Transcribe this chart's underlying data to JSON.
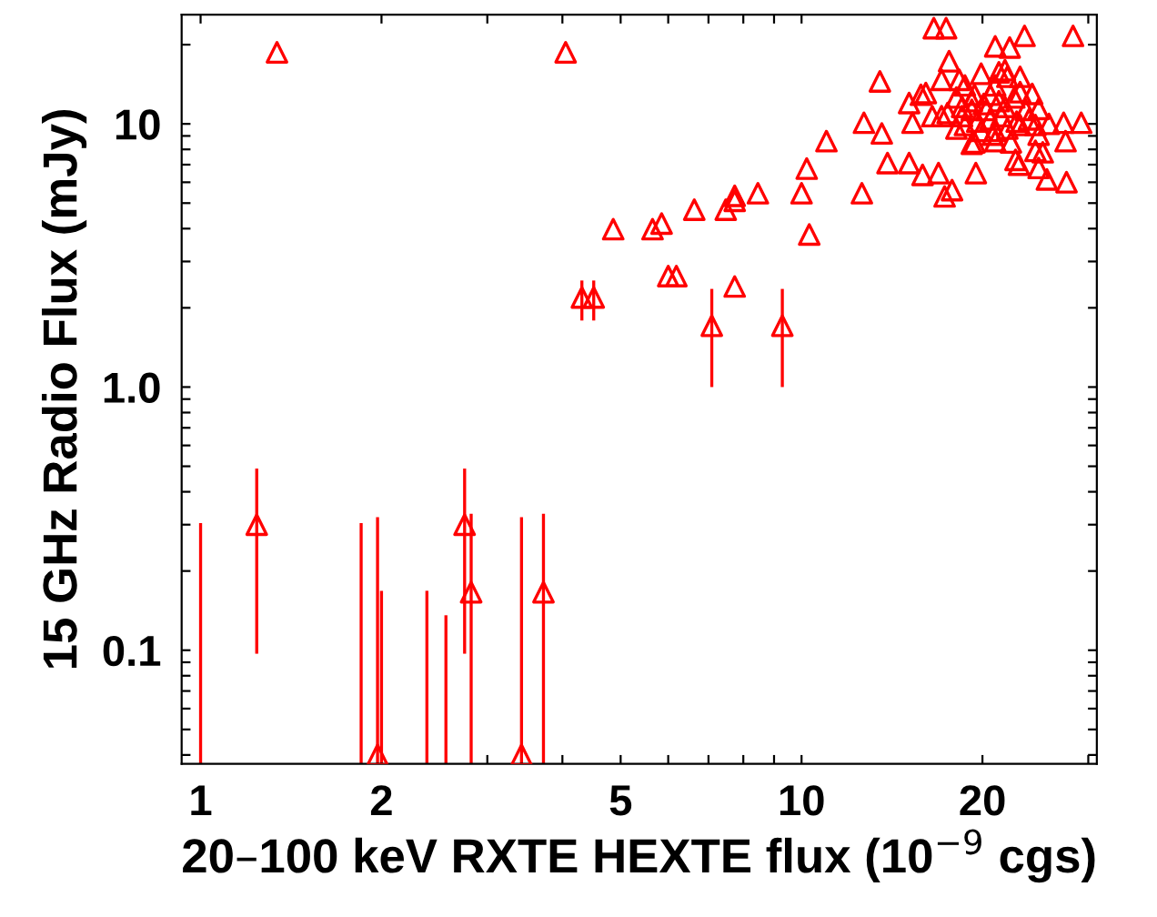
{
  "chart_data": {
    "type": "scatter",
    "xlabel": "20–100 keV RXTE HEXTE flux (10$^{−9}$ cgs)",
    "ylabel": "15 GHz Radio Flux (mJy)",
    "log": "xy",
    "grid": false,
    "marker": "triangle",
    "xlim": [
      0.93,
      31
    ],
    "ylim": [
      0.037,
      26
    ],
    "xticks": [
      1,
      2,
      {
        "value": 3,
        "label": null
      },
      {
        "value": 4,
        "label": null
      },
      5,
      {
        "value": 6,
        "label": null
      },
      {
        "value": 7,
        "label": null
      },
      {
        "value": 8,
        "label": null
      },
      {
        "value": 9,
        "label": null
      },
      10,
      20,
      {
        "value": 30,
        "label": null
      }
    ],
    "yticks": [
      {
        "value": 0.04,
        "label": null
      },
      {
        "value": 0.05,
        "label": null
      },
      {
        "value": 0.06,
        "label": null
      },
      {
        "value": 0.07,
        "label": null
      },
      {
        "value": 0.08,
        "label": null
      },
      {
        "value": 0.09,
        "label": null
      },
      0.1,
      {
        "value": 0.2,
        "label": null
      },
      {
        "value": 0.3,
        "label": null
      },
      {
        "value": 0.4,
        "label": null
      },
      {
        "value": 0.5,
        "label": null
      },
      {
        "value": 0.6,
        "label": null
      },
      {
        "value": 0.7,
        "label": null
      },
      {
        "value": 0.8,
        "label": null
      },
      {
        "value": 0.9,
        "label": null
      },
      {
        "value": 1,
        "label": "1.0"
      },
      {
        "value": 2,
        "label": null
      },
      {
        "value": 3,
        "label": null
      },
      {
        "value": 4,
        "label": null
      },
      {
        "value": 5,
        "label": null
      },
      {
        "value": 6,
        "label": null
      },
      {
        "value": 7,
        "label": null
      },
      {
        "value": 8,
        "label": null
      },
      {
        "value": 9,
        "label": null
      },
      10,
      {
        "value": 20,
        "label": null
      }
    ],
    "series": [
      {
        "color": "#ff0000",
        "x": [
          1.97,
          1.24,
          2.75,
          2.82,
          3.42,
          3.72,
          1.34,
          4.05,
          4.31,
          4.51,
          4.86,
          5.65,
          5.85,
          6.0,
          6.19,
          6.63,
          7.09,
          7.48,
          7.74,
          7.74,
          7.74,
          8.46,
          9.29,
          10,
          10.2,
          10.3,
          11.0,
          12.6,
          12.7,
          13.5,
          13.6,
          13.9,
          15.1,
          15.1,
          15.3,
          15.8,
          16.1,
          15.9,
          16.9,
          16.6,
          17.4,
          16.5,
          17.3,
          17.8,
          17.6,
          17.1,
          19.5,
          21.0,
          22.2,
          23.5,
          28.3,
          27.3,
          29.2,
          27.5,
          27.6,
          25.6,
          24.8,
          25.2,
          24.5,
          22.7,
          23.0,
          22.3,
          21.0,
          19.2,
          24.8,
          25.8,
          24.8,
          24.2,
          23.1,
          18.3,
          18.7,
          19.9,
          21.3,
          21.8,
          22.0,
          21.0,
          20.6,
          19.4,
          18.1,
          18.5,
          19.2,
          20.1,
          21.3,
          22.6,
          23.1,
          23.6,
          23.9,
          22.8,
          21.5,
          20.6,
          19.6,
          18.7,
          18.1,
          18.5,
          19.9,
          21.0,
          22.0,
          23.1,
          17.5,
          17.1,
          19.2,
          20.3,
          21.8,
          19.4,
          20.8,
          24.5
        ],
        "values": [
          0.04,
          0.3,
          0.3,
          0.166,
          0.04,
          0.166,
          18.7,
          18.7,
          2.19,
          2.19,
          3.98,
          3.98,
          4.18,
          2.64,
          2.64,
          4.72,
          1.71,
          4.72,
          5.33,
          5.1,
          2.41,
          5.45,
          1.71,
          5.45,
          6.76,
          3.8,
          8.6,
          5.45,
          10.1,
          14.5,
          9.2,
          7.1,
          12.0,
          7.1,
          10.1,
          12.9,
          13.1,
          6.4,
          6.5,
          23.1,
          23.1,
          10.7,
          5.3,
          5.6,
          17.3,
          14.7,
          6.5,
          19.7,
          19.5,
          21.6,
          21.6,
          10.1,
          10.1,
          8.6,
          6.0,
          6.15,
          6.8,
          7.8,
          7.9,
          7.3,
          7.0,
          8.5,
          8.6,
          8.4,
          9.1,
          10.0,
          11.4,
          13.0,
          15.1,
          14.7,
          14.0,
          15.5,
          15.7,
          16.0,
          15.1,
          14.0,
          12.9,
          12.9,
          12.6,
          11.6,
          11.3,
          11.9,
          12.2,
          12.6,
          13.2,
          11.3,
          10.4,
          10.2,
          10.7,
          10.4,
          10.2,
          9.9,
          9.6,
          10.7,
          9.4,
          9.4,
          9.6,
          9.9,
          11.0,
          10.7,
          12.2,
          11.3,
          11.6,
          8.5,
          9.1,
          9.9
        ],
        "errors": [
          [
            0.037,
            0.32
          ],
          [
            0.097,
            0.49
          ],
          [
            0.097,
            0.49
          ],
          [
            0.037,
            0.33
          ],
          [
            0.037,
            0.32
          ],
          [
            0.037,
            0.33
          ],
          null,
          null,
          [
            1.79,
            2.54
          ],
          [
            1.79,
            2.54
          ],
          null,
          null,
          null,
          null,
          null,
          null,
          [
            1.0,
            2.36
          ],
          null,
          null,
          null,
          null,
          null,
          [
            1.0,
            2.36
          ],
          null,
          null,
          null,
          null,
          null,
          null,
          null,
          null,
          null,
          null,
          null,
          null,
          null,
          null,
          null,
          null,
          null,
          null,
          null,
          null,
          null,
          null,
          null,
          null,
          null,
          null,
          null,
          null,
          null,
          null,
          null,
          null,
          null,
          null,
          null,
          null,
          null,
          null,
          null,
          null,
          null,
          null,
          null,
          null,
          null,
          null,
          null,
          null,
          null,
          null,
          null,
          null,
          null,
          null,
          null,
          null,
          null,
          null,
          null,
          null,
          null,
          null,
          null,
          null,
          null,
          null,
          null,
          null,
          null,
          null,
          null,
          null,
          null,
          null,
          null,
          null,
          null,
          null,
          null,
          null,
          null,
          null,
          null
        ]
      },
      {
        "type": "line",
        "color": "#ff0000",
        "marker": "none",
        "x": [
          1.0,
          1.0
        ],
        "values": [
          0.037,
          0.3
        ]
      },
      {
        "type": "line",
        "color": "#ff0000",
        "marker": "none",
        "x": [
          1.85,
          1.85
        ],
        "values": [
          0.037,
          0.3
        ]
      },
      {
        "type": "line",
        "color": "#ff0000",
        "marker": "none",
        "x": [
          2.0,
          2.0
        ],
        "values": [
          0.037,
          0.166
        ]
      },
      {
        "type": "line",
        "color": "#ff0000",
        "marker": "none",
        "x": [
          2.38,
          2.38
        ],
        "values": [
          0.037,
          0.166
        ]
      },
      {
        "type": "line",
        "color": "#ff0000",
        "marker": "none",
        "x": [
          2.56,
          2.56
        ],
        "values": [
          0.037,
          0.134
        ]
      }
    ]
  }
}
